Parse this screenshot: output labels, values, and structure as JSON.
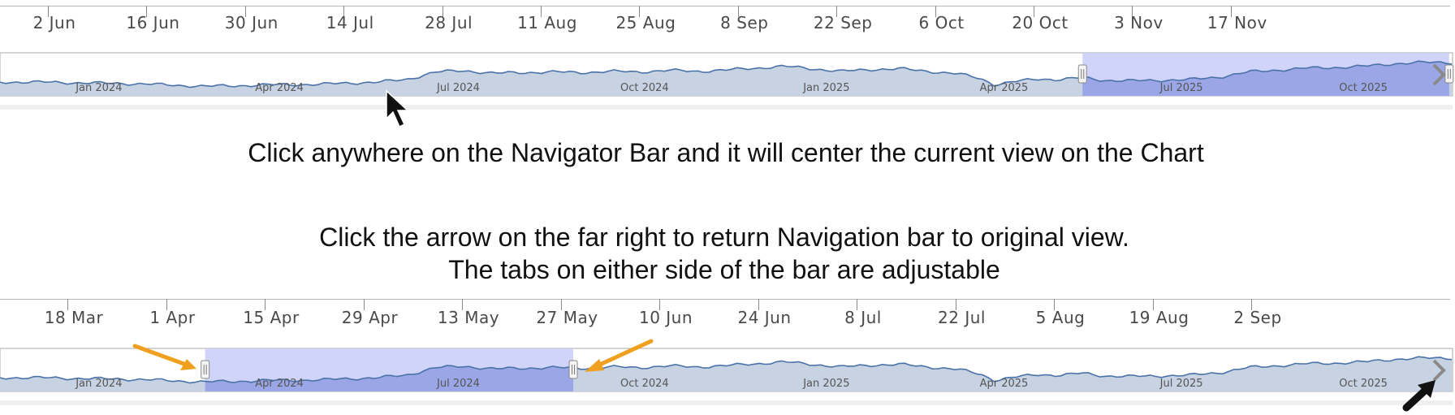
{
  "top_timeline": {
    "ticks": [
      "2 Jun",
      "16 Jun",
      "30 Jun",
      "14 Jul",
      "28 Jul",
      "11 Aug",
      "25 Aug",
      "8 Sep",
      "22 Sep",
      "6 Oct",
      "20 Oct",
      "3 Nov",
      "17 Nov"
    ]
  },
  "top_navigator": {
    "labels": [
      "Jan 2024",
      "Apr 2024",
      "Jul 2024",
      "Oct 2024",
      "Jan 2025",
      "Apr 2025",
      "Jul 2025",
      "Oct 2025"
    ],
    "selection_start_fraction": 0.744,
    "selection_end_fraction": 0.996
  },
  "captions": {
    "line1": "Click anywhere on the Navigator Bar and it will center the current view on the Chart",
    "line2": "Click the arrow on the far right to return Navigation bar to original view.",
    "line3": "The tabs on either side of the bar are adjustable"
  },
  "bottom_timeline": {
    "ticks": [
      "18 Mar",
      "1 Apr",
      "15 Apr",
      "29 Apr",
      "13 May",
      "27 May",
      "10 Jun",
      "24 Jun",
      "8 Jul",
      "22 Jul",
      "5 Aug",
      "19 Aug",
      "2 Sep"
    ]
  },
  "bottom_navigator": {
    "labels": [
      "Jan 2024",
      "Apr 2024",
      "Jul 2024",
      "Oct 2024",
      "Jan 2025",
      "Apr 2025",
      "Jul 2025",
      "Oct 2025"
    ],
    "selection_start_fraction": 0.141,
    "selection_end_fraction": 0.394
  },
  "colors": {
    "series_line": "#4a72a8",
    "series_fill": "#c7d3e3",
    "selection_fill": "#c9ccf8",
    "selection_overlap": "#9aa6e6",
    "annotation_arrow": "#f0a020",
    "cursor": "#111111"
  },
  "icons": [
    "cursor-icon",
    "orange-arrow-icon",
    "chevron-right-icon",
    "drag-handle-icon"
  ]
}
